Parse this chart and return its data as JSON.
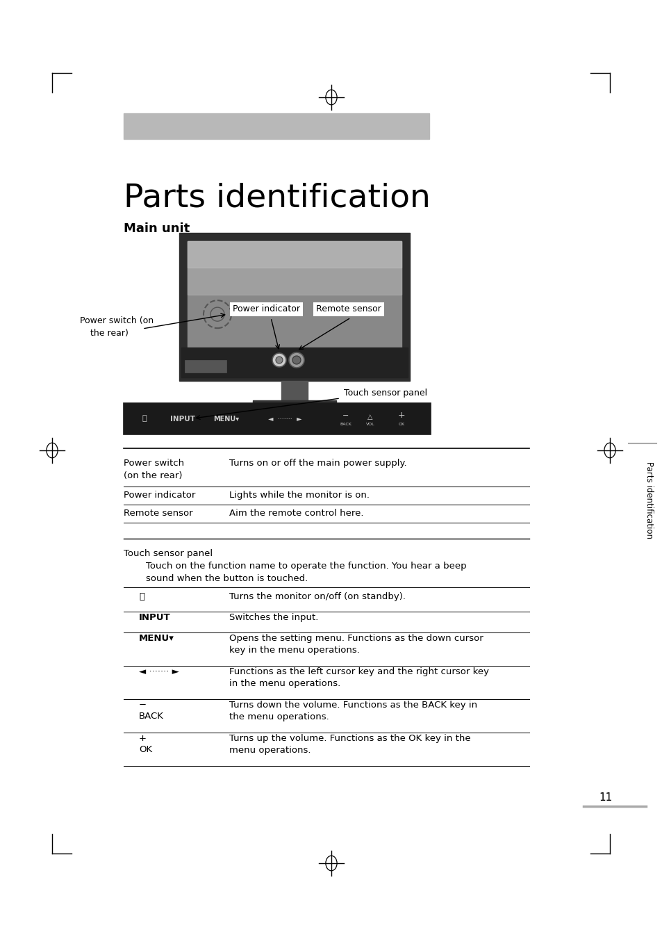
{
  "bg_color": "#ffffff",
  "header_bar_color": "#b8b8b8",
  "title": "Parts identification",
  "subtitle": "Main unit",
  "page_number": "11",
  "sidebar_text": "Parts identification",
  "table_rows": [
    {
      "label": "Power switch\n(on the rear)",
      "desc": "Turns on or off the main power supply."
    },
    {
      "label": "Power indicator",
      "desc": "Lights while the monitor is on."
    },
    {
      "label": "Remote sensor",
      "desc": "Aim the remote control here."
    }
  ],
  "touch_panel_rows": [
    {
      "label": "⏻",
      "bold": false,
      "desc": "Turns the monitor on/off (on standby)."
    },
    {
      "label": "INPUT",
      "bold": true,
      "desc": "Switches the input."
    },
    {
      "label": "MENU▾",
      "bold": true,
      "desc": "Opens the setting menu. Functions as the down cursor\nkey in the menu operations."
    },
    {
      "label": "◄ ······· ►",
      "bold": false,
      "desc": "Functions as the left cursor key and the right cursor key\nin the menu operations."
    },
    {
      "label": "−\nBACK",
      "bold": false,
      "desc": "Turns down the volume. Functions as the BACK key in\nthe menu operations."
    },
    {
      "label": "+\nOK",
      "bold": false,
      "desc": "Turns up the volume. Functions as the OK key in the\nmenu operations."
    }
  ]
}
